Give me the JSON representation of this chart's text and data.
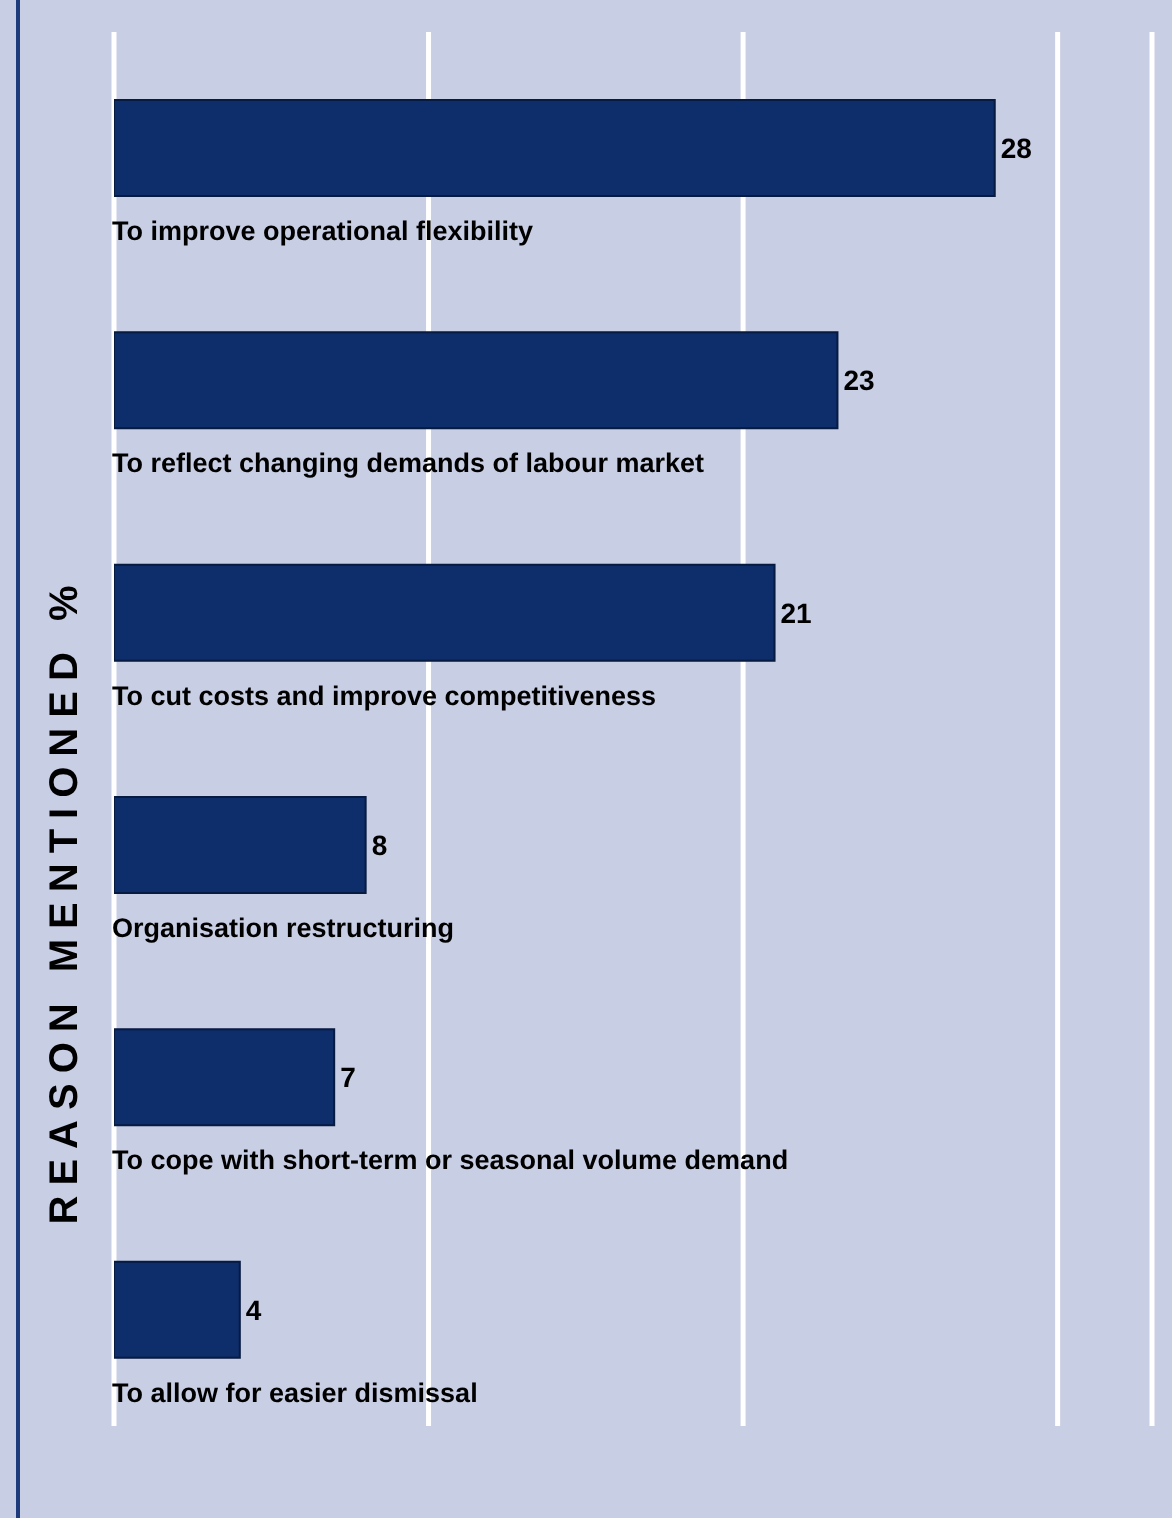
{
  "chart_data": {
    "type": "bar",
    "orientation": "horizontal",
    "ylabel": "REASON MENTIONED %",
    "categories": [
      "To improve operational flexibility",
      "To reflect changing demands of labour market",
      "To cut costs and improve competitiveness",
      "Organisation restructuring",
      "To cope with short-term or seasonal volume demand",
      "To allow for easier dismissal"
    ],
    "values": [
      28,
      23,
      21,
      8,
      7,
      4
    ],
    "color": "#0d2d6b",
    "data_labels": true,
    "xlim": [
      0,
      33
    ],
    "xticks": [
      {
        "value": 0,
        "label": null
      },
      {
        "value": 10,
        "label": null
      },
      {
        "value": 20,
        "label": null
      },
      {
        "value": 30,
        "label": null
      }
    ],
    "grid": "x",
    "tick_labels": "y"
  }
}
